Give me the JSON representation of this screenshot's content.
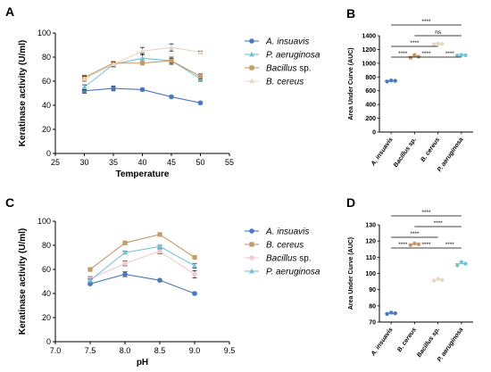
{
  "panels": {
    "A": "A",
    "B": "B",
    "C": "C",
    "D": "D"
  },
  "chart_data": [
    {
      "id": "A",
      "type": "line",
      "xlabel": "Temperature",
      "ylabel": "Keratinase activity (U/ml)",
      "xlim": [
        25,
        55
      ],
      "ylim": [
        0,
        100
      ],
      "xticks": [
        25,
        30,
        35,
        40,
        45,
        50,
        55
      ],
      "yticks": [
        0,
        20,
        40,
        60,
        80,
        100
      ],
      "x": [
        30,
        35,
        40,
        45,
        50
      ],
      "legend_position": "right",
      "series": [
        {
          "name": "A. insuavis",
          "name_italic": true,
          "suffix": "",
          "color": "#4a78c2",
          "marker": "circle",
          "values": [
            52,
            54,
            53,
            47,
            42
          ],
          "errors": [
            2,
            2,
            1,
            1,
            1
          ]
        },
        {
          "name": "P. aeruginosa",
          "name_italic": true,
          "suffix": "",
          "color": "#72c4d8",
          "marker": "triangle",
          "values": [
            55,
            74,
            79,
            77,
            62
          ],
          "errors": [
            2,
            2,
            4,
            2,
            2
          ]
        },
        {
          "name": "Bacillus",
          "name_italic": true,
          "suffix": " sp.",
          "color": "#c49a68",
          "marker": "square",
          "values": [
            63,
            75,
            75,
            77,
            64
          ],
          "errors": [
            2,
            1,
            1,
            3,
            2
          ]
        },
        {
          "name": "B. cereus",
          "name_italic": true,
          "suffix": "",
          "color": "#e6d8c4",
          "marker": "triangle",
          "values": [
            62,
            74,
            85,
            88,
            84
          ],
          "errors": [
            2,
            2,
            3,
            3,
            1
          ]
        }
      ]
    },
    {
      "id": "B",
      "type": "scatter",
      "ylabel": "Area Under Curve  (AUC)",
      "ylim": [
        0,
        1400
      ],
      "yticks": [
        0,
        200,
        400,
        600,
        800,
        1000,
        1200,
        1400
      ],
      "categories": [
        "A. insuavis",
        "Bacillus sp.",
        "B. cereus",
        "P. aeruginosa"
      ],
      "series": [
        {
          "category": "A. insuavis",
          "color": "#4a78c2",
          "values": [
            735,
            750,
            745
          ]
        },
        {
          "category": "Bacillus sp.",
          "color": "#c49a68",
          "values": [
            1080,
            1120,
            1095
          ]
        },
        {
          "category": "B. cereus",
          "color": "#e6d8c4",
          "values": [
            1275,
            1285,
            1280
          ]
        },
        {
          "category": "P. aeruginosa",
          "color": "#72c4d8",
          "values": [
            1110,
            1120,
            1115
          ]
        }
      ],
      "significance": [
        {
          "from": 0,
          "to": 1,
          "label": "****",
          "level": 0
        },
        {
          "from": 1,
          "to": 2,
          "label": "****",
          "level": 0
        },
        {
          "from": 2,
          "to": 3,
          "label": "****",
          "level": 0
        },
        {
          "from": 0,
          "to": 2,
          "label": "****",
          "level": 1
        },
        {
          "from": 1,
          "to": 3,
          "label": "ns",
          "level": 2
        },
        {
          "from": 0,
          "to": 3,
          "label": "****",
          "level": 3
        }
      ]
    },
    {
      "id": "C",
      "type": "line",
      "xlabel": "pH",
      "ylabel": "Keratinase activity (U/ml)",
      "xlim": [
        7.0,
        9.5
      ],
      "ylim": [
        0,
        100
      ],
      "xticks": [
        "7.0",
        "7.5",
        "8.0",
        "8.5",
        "9.0",
        "9.5"
      ],
      "yticks": [
        0,
        20,
        40,
        60,
        80,
        100
      ],
      "x": [
        7.5,
        8.0,
        8.5,
        9.0
      ],
      "legend_position": "right",
      "series": [
        {
          "name": "A. insuavis",
          "name_italic": true,
          "suffix": "",
          "color": "#4a78c2",
          "marker": "circle",
          "values": [
            48,
            56,
            51,
            40
          ],
          "errors": [
            1,
            2,
            1,
            1
          ]
        },
        {
          "name": "B. cereus",
          "name_italic": true,
          "suffix": "",
          "color": "#c49a68",
          "marker": "square",
          "values": [
            60,
            82,
            89,
            70
          ],
          "errors": [
            1,
            1,
            1,
            1
          ]
        },
        {
          "name": "Bacillus",
          "name_italic": true,
          "suffix": " sp.",
          "color": "#f2c9cc",
          "marker": "circle",
          "values": [
            52,
            65,
            75,
            56
          ],
          "errors": [
            2,
            2,
            2,
            3
          ]
        },
        {
          "name": "P. aeruginosa",
          "name_italic": true,
          "suffix": "",
          "color": "#72c4d8",
          "marker": "triangle",
          "values": [
            51,
            74,
            79,
            63
          ],
          "errors": [
            1,
            1,
            1,
            2
          ]
        }
      ]
    },
    {
      "id": "D",
      "type": "scatter",
      "ylabel": "Area Under Curve  (AUC)",
      "ylim": [
        70,
        130
      ],
      "yticks": [
        70,
        80,
        90,
        100,
        110,
        120,
        130
      ],
      "categories": [
        "A. insuavis",
        "B. cereus",
        "Bacillus sp.",
        "P. aeruginosa"
      ],
      "series": [
        {
          "category": "A. insuavis",
          "color": "#4a78c2",
          "values": [
            75,
            75.8,
            75.4
          ]
        },
        {
          "category": "B. cereus",
          "color": "#c49a68",
          "values": [
            117.5,
            118.5,
            118.0
          ]
        },
        {
          "category": "Bacillus sp.",
          "color": "#e6d8c4",
          "values": [
            95.5,
            96.5,
            96.0
          ]
        },
        {
          "category": "P. aeruginosa",
          "color": "#72c4d8",
          "values": [
            105,
            107,
            106
          ]
        }
      ],
      "significance": [
        {
          "from": 0,
          "to": 1,
          "label": "****",
          "level": 0
        },
        {
          "from": 1,
          "to": 2,
          "label": "****",
          "level": 0
        },
        {
          "from": 2,
          "to": 3,
          "label": "****",
          "level": 0
        },
        {
          "from": 0,
          "to": 2,
          "label": "****",
          "level": 1
        },
        {
          "from": 1,
          "to": 3,
          "label": "****",
          "level": 2
        },
        {
          "from": 0,
          "to": 3,
          "label": "****",
          "level": 3
        }
      ]
    }
  ]
}
